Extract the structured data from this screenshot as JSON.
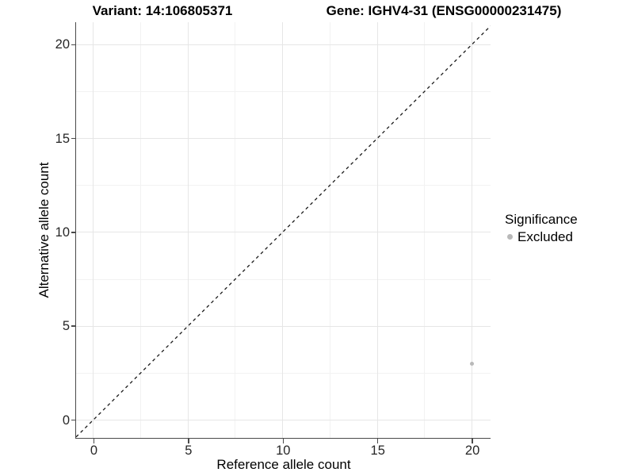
{
  "chart_data": {
    "type": "scatter",
    "title_left": "Variant: 14:106805371",
    "title_right": "Gene: IGHV4-31 (ENSG00000231475)",
    "xlabel": "Reference allele count",
    "ylabel": "Alternative allele count",
    "xlim": [
      -0.9,
      21.0
    ],
    "ylim": [
      -0.95,
      21.2
    ],
    "xticks": [
      0,
      5,
      10,
      15,
      20
    ],
    "yticks": [
      0,
      5,
      10,
      15,
      20
    ],
    "xticks_minor": [
      2.5,
      7.5,
      12.5,
      17.5
    ],
    "yticks_minor": [
      2.5,
      7.5,
      12.5,
      17.5
    ],
    "grid": "on",
    "series": [
      {
        "name": "Excluded",
        "color": "#b9b9b9",
        "points": [
          {
            "x": 20,
            "y": 3
          }
        ]
      }
    ],
    "reference_line": {
      "slope": 1,
      "intercept": 0,
      "style": "dashed",
      "color": "#1a1a1a"
    },
    "legend": {
      "position": "right",
      "title": "Significance",
      "items": [
        {
          "label": "Excluded",
          "color": "#b9b9b9"
        }
      ]
    },
    "colors": {
      "grid_major": "#e6e6e6",
      "grid_minor": "#f2f2f2",
      "axis_line": "#4a4a4a",
      "tick_text": "#262626",
      "title_text": "#000000"
    }
  }
}
